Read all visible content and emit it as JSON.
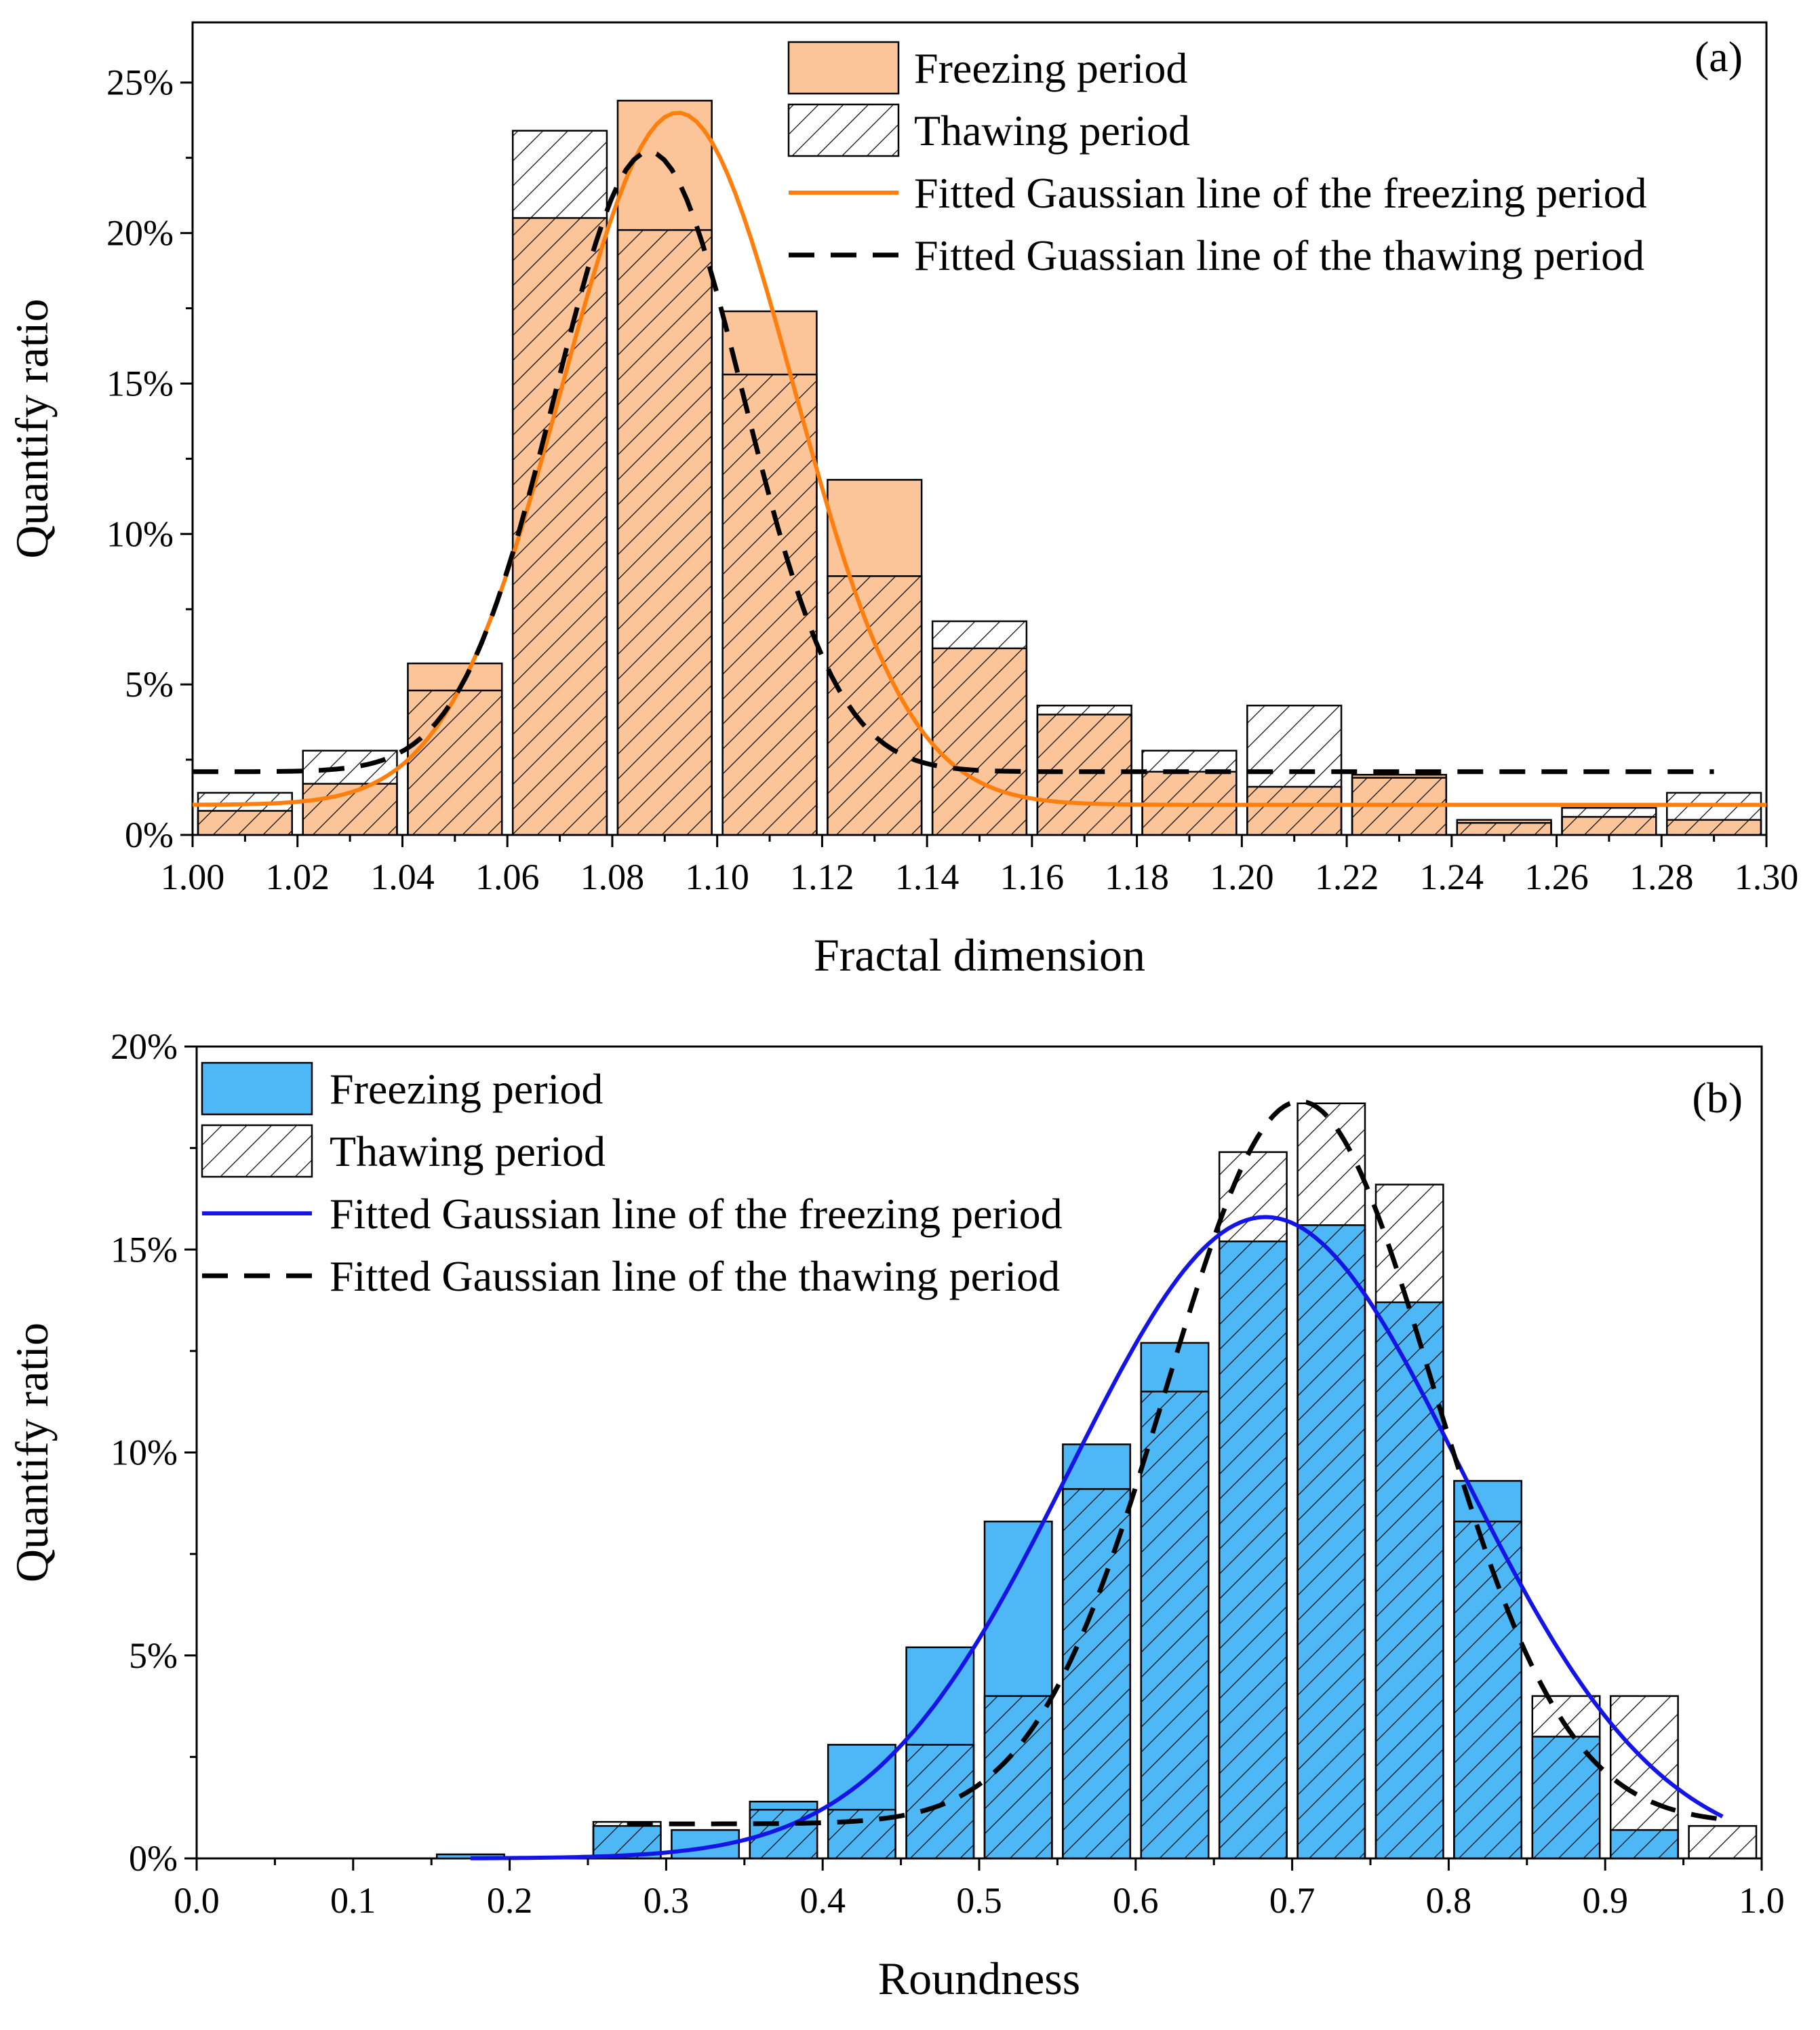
{
  "chart_data": [
    {
      "id": "a",
      "type": "bar",
      "panel_label": "(a)",
      "xlabel": "Fractal dimension",
      "ylabel": "Quantify ratio",
      "xlim": [
        1.0,
        1.3
      ],
      "ylim": [
        0,
        27
      ],
      "bin_width": 0.02,
      "x_ticks": [
        1.0,
        1.02,
        1.04,
        1.06,
        1.08,
        1.1,
        1.12,
        1.14,
        1.16,
        1.18,
        1.2,
        1.22,
        1.24,
        1.26,
        1.28,
        1.3
      ],
      "x_tick_labels": [
        "1.00",
        "1.02",
        "1.04",
        "1.06",
        "1.08",
        "1.10",
        "1.12",
        "1.14",
        "1.16",
        "1.18",
        "1.20",
        "1.22",
        "1.24",
        "1.26",
        "1.28",
        "1.30"
      ],
      "y_ticks": [
        0,
        5,
        10,
        15,
        20,
        25
      ],
      "y_tick_labels": [
        "0%",
        "5%",
        "10%",
        "15%",
        "20%",
        "25%"
      ],
      "bin_centers": [
        1.01,
        1.03,
        1.05,
        1.07,
        1.09,
        1.11,
        1.13,
        1.15,
        1.17,
        1.19,
        1.21,
        1.23,
        1.25,
        1.27,
        1.29
      ],
      "series": [
        {
          "name": "Freezing period",
          "kind": "bar",
          "color": "#FBC499",
          "values": [
            0.8,
            1.7,
            5.7,
            20.5,
            24.4,
            17.4,
            11.8,
            6.2,
            4.0,
            2.1,
            1.6,
            2.0,
            0.5,
            0.6,
            0.5
          ]
        },
        {
          "name": "Thawing period",
          "kind": "hatched-bar",
          "values": [
            1.4,
            2.8,
            4.8,
            23.4,
            20.1,
            15.3,
            8.6,
            7.1,
            4.3,
            2.8,
            4.3,
            1.9,
            0.4,
            0.9,
            1.4
          ]
        },
        {
          "name": "Fitted Gaussian line of the freezing period",
          "kind": "line",
          "color": "#FF7F0E",
          "y0": 1.0,
          "amplitude": 23.0,
          "center": 1.0925,
          "sigma": 0.022,
          "x_range": [
            1.0,
            1.3
          ]
        },
        {
          "name": "Fitted Guassian line of the thawing period",
          "kind": "dashed-line",
          "color": "#000000",
          "y0": 2.1,
          "amplitude": 20.6,
          "center": 1.087,
          "sigma": 0.018,
          "x_range": [
            1.0,
            1.29
          ]
        }
      ],
      "legend": [
        {
          "label": "Freezing period",
          "kind": "bar",
          "color": "#FBC499"
        },
        {
          "label": "Thawing period",
          "kind": "hatched-bar"
        },
        {
          "label": "Fitted Gaussian line of the freezing period",
          "kind": "line",
          "color": "#FF7F0E"
        },
        {
          "label": "Fitted Guassian line of the thawing period",
          "kind": "dashed-line",
          "color": "#000000"
        }
      ],
      "legend_position": "top-right"
    },
    {
      "id": "b",
      "type": "bar",
      "panel_label": "(b)",
      "xlabel": "Roundness",
      "ylabel": "Quantify ratio",
      "xlim": [
        0.0,
        1.0
      ],
      "ylim": [
        0,
        20
      ],
      "bin_width": 0.05,
      "x_ticks": [
        0.0,
        0.1,
        0.2,
        0.3,
        0.4,
        0.5,
        0.6,
        0.7,
        0.8,
        0.9,
        1.0
      ],
      "x_tick_labels": [
        "0.0",
        "0.1",
        "0.2",
        "0.3",
        "0.4",
        "0.5",
        "0.6",
        "0.7",
        "0.8",
        "0.9",
        "1.0"
      ],
      "y_ticks": [
        0,
        5,
        10,
        15,
        20
      ],
      "y_tick_labels": [
        "0%",
        "5%",
        "10%",
        "15%",
        "20%"
      ],
      "bin_centers": [
        0.175,
        0.225,
        0.275,
        0.325,
        0.375,
        0.425,
        0.475,
        0.525,
        0.575,
        0.625,
        0.675,
        0.725,
        0.775,
        0.825,
        0.875,
        0.925,
        0.975
      ],
      "series": [
        {
          "name": "Freezing period",
          "kind": "bar",
          "color": "#4DB8F5",
          "values": [
            0.1,
            0.0,
            0.8,
            0.7,
            1.4,
            2.8,
            5.2,
            8.3,
            10.2,
            12.7,
            15.2,
            15.6,
            13.7,
            9.3,
            3.0,
            0.7,
            0.0
          ]
        },
        {
          "name": "Thawing period",
          "kind": "hatched-bar",
          "values": [
            0.0,
            0.0,
            0.9,
            0.0,
            1.2,
            1.2,
            2.8,
            4.0,
            9.1,
            11.5,
            17.4,
            18.6,
            16.6,
            8.3,
            4.0,
            4.0,
            0.8
          ]
        },
        {
          "name": "Fitted Gaussian line of the freezing period",
          "kind": "line",
          "color": "#1414E6",
          "y0": 0.0,
          "amplitude": 15.8,
          "center": 0.683,
          "sigma": 0.125,
          "x_range": [
            0.175,
            0.975
          ]
        },
        {
          "name": "Fitted Gaussian line of the thawing period",
          "kind": "dashed-line",
          "color": "#000000",
          "y0": 0.85,
          "amplitude": 17.8,
          "center": 0.705,
          "sigma": 0.085,
          "x_range": [
            0.275,
            0.975
          ]
        }
      ],
      "legend": [
        {
          "label": "Freezing period",
          "kind": "bar",
          "color": "#4DB8F5"
        },
        {
          "label": "Thawing period",
          "kind": "hatched-bar"
        },
        {
          "label": "Fitted Gaussian line of the freezing period",
          "kind": "line",
          "color": "#1414E6"
        },
        {
          "label": "Fitted Gaussian line of the thawing period",
          "kind": "dashed-line",
          "color": "#000000"
        }
      ],
      "legend_position": "top-left"
    }
  ]
}
